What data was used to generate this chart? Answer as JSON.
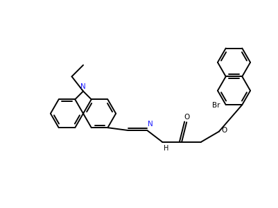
{
  "background_color": "#ffffff",
  "line_color": "#000000",
  "line_width": 1.4,
  "figsize": [
    4.01,
    3.0
  ],
  "dpi": 100,
  "xlim": [
    0,
    10
  ],
  "ylim": [
    0,
    7.5
  ]
}
